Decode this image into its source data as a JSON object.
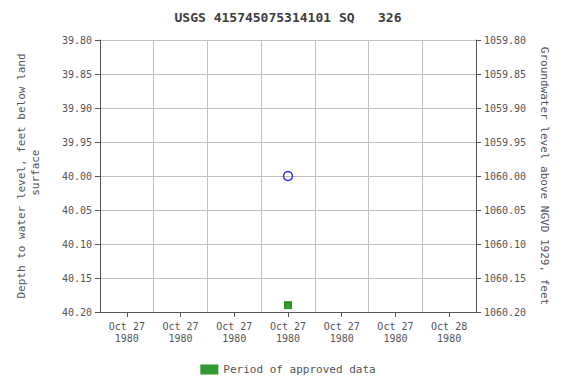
{
  "chart_data": {
    "type": "scatter",
    "title": "USGS 415745075314101 SQ   326",
    "y_label": "Depth to water level, feet below land\n surface",
    "y2_label": "Groundwater level above NGVD 1929, feet",
    "categories": [
      "Oct 27\n1980",
      "Oct 27\n1980",
      "Oct 27\n1980",
      "Oct 27\n1980",
      "Oct 27\n1980",
      "Oct 27\n1980",
      "Oct 28\n1980"
    ],
    "series": [
      {
        "color": "#0000cc",
        "marker": "circle",
        "values": [
          null,
          null,
          null,
          40.0,
          null,
          null,
          null
        ]
      },
      {
        "name": "Period of approved data",
        "color": "#008000",
        "marker": "square",
        "values": [
          null,
          null,
          null,
          40.19,
          null,
          null,
          null
        ]
      }
    ],
    "ylim": [
      40.2,
      39.8
    ],
    "yticks": [
      {
        "value": 39.8,
        "label": "39.80"
      },
      {
        "value": 39.85,
        "label": "39.85"
      },
      {
        "value": 39.9,
        "label": "39.90"
      },
      {
        "value": 39.95,
        "label": "39.95"
      },
      {
        "value": 40.0,
        "label": "40.00"
      },
      {
        "value": 40.05,
        "label": "40.05"
      },
      {
        "value": 40.1,
        "label": "40.10"
      },
      {
        "value": 40.15,
        "label": "40.15"
      },
      {
        "value": 40.2,
        "label": "40.20"
      }
    ],
    "y2lim": [
      1060.2,
      1059.8
    ],
    "y2ticks": [
      {
        "value": 1059.8,
        "label": "1059.80"
      },
      {
        "value": 1059.85,
        "label": "1059.85"
      },
      {
        "value": 1059.9,
        "label": "1059.90"
      },
      {
        "value": 1059.95,
        "label": "1059.95"
      },
      {
        "value": 1060.0,
        "label": "1060.00"
      },
      {
        "value": 1060.05,
        "label": "1060.05"
      },
      {
        "value": 1060.1,
        "label": "1060.10"
      },
      {
        "value": 1060.15,
        "label": "1060.15"
      },
      {
        "value": 1060.2,
        "label": "1060.20"
      }
    ],
    "grid": true,
    "legend": "bottom"
  }
}
